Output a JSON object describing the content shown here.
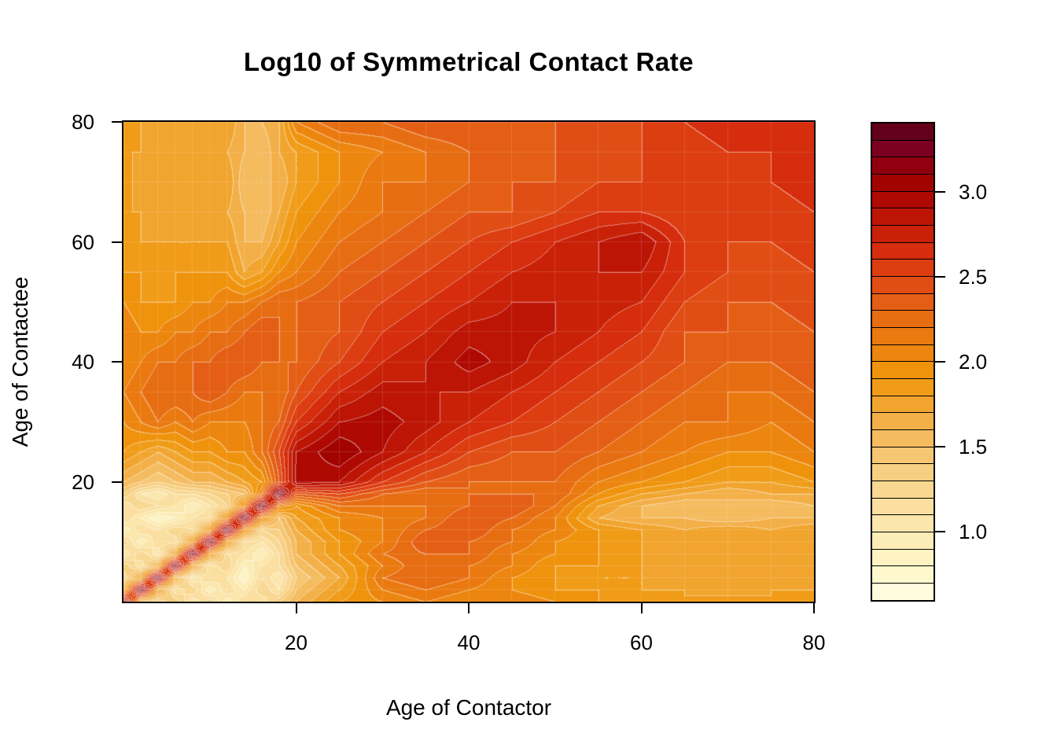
{
  "title": "Log10 of Symmetrical Contact Rate",
  "chart_data": {
    "type": "heatmap",
    "subtype": "filled-contour",
    "title": "Log10 of Symmetrical Contact Rate",
    "xlabel": "Age of Contactor",
    "ylabel": "Age of Contactee",
    "xlim": [
      0,
      80
    ],
    "ylim": [
      0,
      80
    ],
    "zlim": [
      0.6,
      3.4
    ],
    "level_step": 0.1,
    "grid": "faint white mesh at data-node ages",
    "legend_position": "right",
    "x_ticks": [
      20,
      40,
      60,
      80
    ],
    "x_tick_labels": [
      "20",
      "40",
      "60",
      "80"
    ],
    "y_ticks": [
      20,
      40,
      60,
      80
    ],
    "y_tick_labels": [
      "20",
      "40",
      "60",
      "80"
    ],
    "legend_ticks": [
      1.0,
      1.5,
      2.0,
      2.5,
      3.0
    ],
    "legend_tick_labels": [
      "1.0",
      "1.5",
      "2.0",
      "2.5",
      "3.0"
    ],
    "axis_color": "#000000",
    "background": "#FFFFFF",
    "contour_line_color": "#FFFFFF",
    "palette_low_to_high": [
      "#FFFBDC",
      "#FEF8CF",
      "#FDF3C3",
      "#FCEDB7",
      "#FBE6AB",
      "#FADFA0",
      "#F8D791",
      "#F7CF82",
      "#F6C672",
      "#F4BB5F",
      "#F3B049",
      "#F1A52F",
      "#F09C18",
      "#EF930D",
      "#EC860E",
      "#EA7A10",
      "#E76D13",
      "#E45F15",
      "#E14E15",
      "#DC3D11",
      "#D52D0D",
      "#C92108",
      "#BC1405",
      "#AE0902",
      "#A10301",
      "#90000F",
      "#7C0020",
      "#620119"
    ],
    "ages": [
      0,
      2,
      4,
      6,
      8,
      10,
      12,
      14,
      16,
      18,
      20,
      25,
      30,
      35,
      40,
      45,
      50,
      55,
      60,
      65,
      70,
      75,
      80
    ],
    "values_note": "log10 contact rate; rows = contactee age ascending, cols = contactor age ascending; estimated from contour shading",
    "values_log10": [
      [
        3.2,
        1.7,
        1.2,
        1.4,
        1.0,
        1.3,
        0.9,
        1.2,
        1.1,
        1.4,
        1.6,
        1.9,
        2.0,
        2.1,
        2.0,
        2.1,
        2.0,
        1.9,
        1.9,
        1.8,
        1.9,
        1.8,
        1.9
      ],
      [
        1.7,
        3.35,
        1.8,
        1.1,
        1.3,
        0.9,
        1.2,
        1.0,
        1.3,
        1.1,
        1.5,
        1.8,
        2.1,
        2.2,
        2.1,
        2.0,
        1.9,
        1.9,
        1.8,
        1.8,
        1.7,
        1.8,
        1.8
      ],
      [
        1.2,
        1.8,
        3.35,
        1.7,
        1.0,
        1.2,
        1.1,
        0.8,
        1.2,
        1.0,
        1.4,
        1.7,
        2.2,
        2.3,
        2.2,
        2.0,
        1.9,
        1.8,
        1.8,
        1.7,
        1.8,
        1.7,
        1.8
      ],
      [
        1.4,
        1.1,
        1.7,
        3.35,
        1.8,
        1.1,
        1.3,
        0.9,
        1.1,
        1.2,
        1.5,
        1.8,
        2.1,
        2.3,
        2.2,
        2.1,
        1.9,
        1.9,
        1.8,
        1.8,
        1.7,
        1.8,
        1.7
      ],
      [
        1.0,
        1.3,
        1.0,
        1.8,
        3.35,
        1.9,
        1.2,
        1.1,
        0.9,
        1.2,
        1.6,
        1.9,
        2.2,
        2.3,
        2.3,
        2.1,
        2.0,
        1.9,
        1.8,
        1.7,
        1.8,
        1.7,
        1.8
      ],
      [
        1.3,
        0.9,
        1.2,
        1.1,
        1.9,
        3.35,
        1.9,
        1.2,
        1.1,
        1.3,
        1.6,
        1.9,
        2.1,
        2.4,
        2.3,
        2.2,
        2.0,
        1.9,
        1.8,
        1.8,
        1.7,
        1.8,
        1.7
      ],
      [
        0.9,
        1.2,
        1.1,
        1.3,
        1.2,
        1.9,
        3.35,
        2.0,
        1.3,
        1.4,
        1.7,
        2.0,
        2.1,
        2.3,
        2.4,
        2.2,
        2.1,
        1.9,
        1.8,
        1.7,
        1.8,
        1.7,
        1.8
      ],
      [
        1.2,
        1.0,
        0.8,
        0.9,
        1.1,
        1.2,
        2.0,
        3.35,
        2.0,
        1.5,
        1.8,
        2.0,
        2.1,
        2.2,
        2.4,
        2.3,
        2.1,
        1.7,
        1.6,
        1.6,
        1.5,
        1.6,
        1.6
      ],
      [
        1.1,
        1.3,
        1.2,
        1.1,
        0.9,
        1.1,
        1.3,
        2.0,
        3.35,
        2.1,
        1.9,
        2.2,
        2.2,
        2.2,
        2.3,
        2.4,
        2.2,
        1.8,
        1.6,
        1.5,
        1.6,
        1.5,
        1.6
      ],
      [
        1.4,
        1.1,
        1.0,
        1.2,
        1.2,
        1.3,
        1.4,
        1.5,
        2.1,
        3.35,
        2.4,
        2.5,
        2.3,
        2.2,
        2.3,
        2.3,
        2.3,
        2.0,
        1.8,
        1.7,
        1.6,
        1.7,
        1.7
      ],
      [
        1.6,
        1.5,
        1.4,
        1.5,
        1.6,
        1.6,
        1.7,
        1.8,
        1.9,
        2.4,
        2.95,
        2.9,
        2.6,
        2.4,
        2.3,
        2.3,
        2.3,
        2.1,
        2.0,
        1.9,
        1.8,
        1.8,
        1.9
      ],
      [
        1.9,
        1.8,
        1.7,
        1.8,
        1.9,
        1.9,
        2.0,
        2.0,
        2.2,
        2.5,
        2.9,
        3.1,
        2.9,
        2.7,
        2.5,
        2.4,
        2.4,
        2.3,
        2.2,
        2.1,
        2.0,
        2.0,
        2.1
      ],
      [
        2.0,
        2.1,
        2.2,
        2.1,
        2.2,
        2.1,
        2.1,
        2.1,
        2.2,
        2.3,
        2.6,
        2.9,
        2.95,
        2.85,
        2.7,
        2.6,
        2.5,
        2.4,
        2.3,
        2.2,
        2.2,
        2.1,
        2.2
      ],
      [
        2.1,
        2.2,
        2.3,
        2.3,
        2.3,
        2.4,
        2.3,
        2.2,
        2.2,
        2.2,
        2.4,
        2.7,
        2.85,
        2.8,
        2.8,
        2.7,
        2.6,
        2.5,
        2.4,
        2.3,
        2.2,
        2.2,
        2.3
      ],
      [
        2.0,
        2.1,
        2.2,
        2.2,
        2.3,
        2.3,
        2.4,
        2.4,
        2.3,
        2.3,
        2.3,
        2.5,
        2.7,
        2.8,
        2.95,
        2.85,
        2.7,
        2.6,
        2.5,
        2.4,
        2.3,
        2.3,
        2.4
      ],
      [
        2.1,
        2.0,
        2.0,
        2.1,
        2.1,
        2.2,
        2.2,
        2.3,
        2.4,
        2.3,
        2.3,
        2.4,
        2.6,
        2.7,
        2.85,
        2.85,
        2.8,
        2.7,
        2.6,
        2.4,
        2.4,
        2.3,
        2.4
      ],
      [
        2.0,
        1.9,
        1.9,
        1.9,
        2.0,
        2.0,
        2.1,
        2.1,
        2.2,
        2.3,
        2.3,
        2.4,
        2.5,
        2.6,
        2.7,
        2.8,
        2.8,
        2.75,
        2.7,
        2.5,
        2.4,
        2.4,
        2.5
      ],
      [
        1.9,
        1.9,
        1.8,
        1.9,
        1.9,
        1.9,
        1.9,
        1.7,
        1.8,
        2.0,
        2.1,
        2.3,
        2.4,
        2.5,
        2.6,
        2.7,
        2.75,
        2.8,
        2.8,
        2.6,
        2.5,
        2.4,
        2.5
      ],
      [
        1.9,
        1.8,
        1.8,
        1.8,
        1.8,
        1.8,
        1.8,
        1.6,
        1.6,
        1.8,
        2.0,
        2.2,
        2.3,
        2.4,
        2.5,
        2.6,
        2.7,
        2.8,
        2.9,
        2.6,
        2.5,
        2.5,
        2.6
      ],
      [
        1.8,
        1.8,
        1.7,
        1.8,
        1.7,
        1.8,
        1.7,
        1.6,
        1.5,
        1.7,
        1.9,
        2.1,
        2.2,
        2.3,
        2.4,
        2.4,
        2.5,
        2.6,
        2.6,
        2.5,
        2.55,
        2.55,
        2.6
      ],
      [
        1.9,
        1.7,
        1.8,
        1.7,
        1.8,
        1.7,
        1.8,
        1.5,
        1.6,
        1.6,
        1.8,
        2.0,
        2.2,
        2.2,
        2.3,
        2.4,
        2.4,
        2.5,
        2.5,
        2.55,
        2.55,
        2.6,
        2.65
      ],
      [
        1.8,
        1.8,
        1.7,
        1.8,
        1.7,
        1.8,
        1.7,
        1.6,
        1.5,
        1.7,
        1.8,
        2.0,
        2.1,
        2.2,
        2.3,
        2.3,
        2.4,
        2.4,
        2.5,
        2.55,
        2.6,
        2.6,
        2.65
      ],
      [
        1.9,
        1.8,
        1.8,
        1.7,
        1.8,
        1.7,
        1.8,
        1.6,
        1.6,
        1.7,
        2.1,
        2.3,
        2.3,
        2.4,
        2.4,
        2.4,
        2.4,
        2.5,
        2.5,
        2.6,
        2.65,
        2.65,
        2.7
      ]
    ]
  }
}
